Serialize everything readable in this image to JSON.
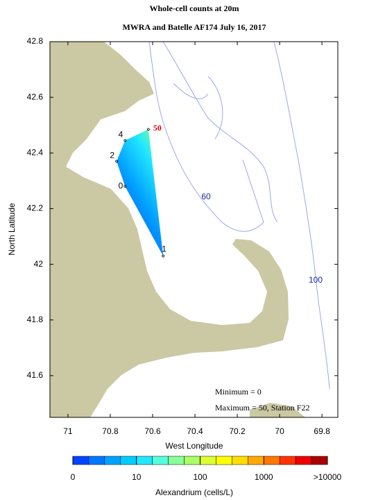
{
  "chart_data": {
    "type": "map",
    "title": "Whole-cell counts at 20m",
    "subtitle": "MWRA and Batelle AF174 July 16, 2017",
    "x_label": "West Longitude",
    "y_label": "North Latitude",
    "xlim": [
      71.085,
      69.725
    ],
    "ylim": [
      41.45,
      42.8
    ],
    "xticks": [
      71,
      70.8,
      70.6,
      70.4,
      70.2,
      70,
      69.8
    ],
    "yticks": [
      41.6,
      41.8,
      42,
      42.2,
      42.4,
      42.6,
      42.8
    ],
    "stations": {
      "lon": [
        70.62,
        70.73,
        70.77,
        70.73,
        70.55
      ],
      "lat": [
        42.485,
        42.445,
        42.37,
        42.28,
        42.03
      ],
      "values": [
        50,
        4,
        2,
        0,
        1
      ]
    },
    "contour_labels": [
      "60",
      "100"
    ],
    "annotations": [
      "Minimum = 0",
      "Maximum = 50, Station F22"
    ],
    "colorbar": {
      "label": "Alexandrium (cells/L)",
      "colors": [
        "#0044ff",
        "#0077ff",
        "#00a2ff",
        "#00ccff",
        "#22e8ff",
        "#55ffdd",
        "#88ff99",
        "#aaff66",
        "#ddff33",
        "#ffff00",
        "#ffdd00",
        "#ffaa00",
        "#ff7700",
        "#ff3300",
        "#ee0000",
        "#aa0000"
      ],
      "ticks": [
        0,
        10,
        100,
        1000,
        {
          "value": 10000,
          "label": ">10000"
        }
      ]
    }
  }
}
